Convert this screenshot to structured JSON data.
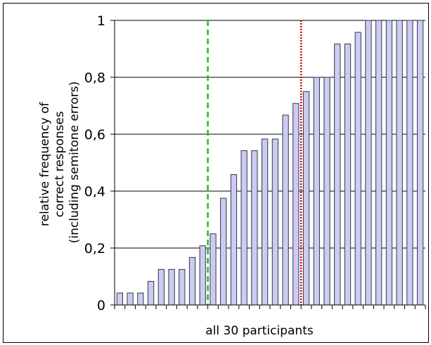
{
  "chart_data": {
    "type": "bar",
    "ylabel_lines": [
      "relative frequency of",
      "correct responses",
      "(including semitone errors)"
    ],
    "xlabel": "all 30 participants",
    "ylim": [
      0,
      1
    ],
    "y_ticks": [
      0,
      0.2,
      0.4,
      0.6,
      0.8,
      1
    ],
    "y_tick_labels": [
      "0",
      "0,2",
      "0,4",
      "0,6",
      "0,8",
      "1"
    ],
    "grid": "horizontal",
    "bar_color": "#ccccee",
    "bar_edge_color": "#333355",
    "values": [
      0.042,
      0.042,
      0.042,
      0.083,
      0.125,
      0.125,
      0.125,
      0.167,
      0.208,
      0.25,
      0.375,
      0.458,
      0.542,
      0.542,
      0.583,
      0.583,
      0.667,
      0.708,
      0.75,
      0.8,
      0.8,
      0.917,
      0.917,
      0.958,
      1,
      1,
      1,
      1,
      1,
      1
    ],
    "reference_lines": [
      {
        "x_after_bar": 9,
        "color": "#22bb22",
        "style": "dashed"
      },
      {
        "x_after_bar": 18,
        "color": "#cc0000",
        "style": "dotted"
      }
    ]
  }
}
